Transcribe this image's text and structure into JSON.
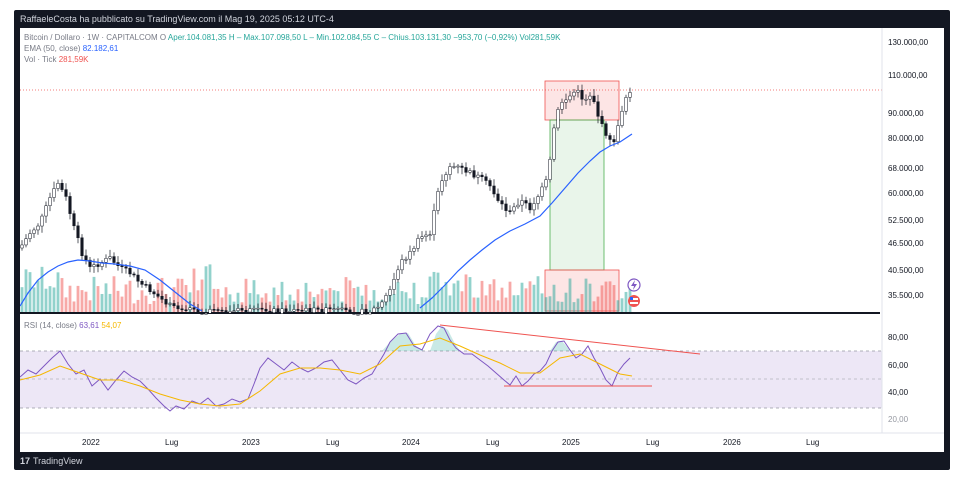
{
  "header": {
    "publisher_line": "RaffaeleCosta ha pubblicato su TradingView.com il Mag 19, 2025 05:12 UTC-4"
  },
  "legend": {
    "symbol": "Bitcoin / Dollaro · 1W · CAPITALCOM",
    "open_label": "O",
    "open_value": "Aper.104.081,35",
    "high_value": "H – Max.107.098,50",
    "low_value": "L – Min.102.084,55",
    "close_value": "C – Chius.103.131,30",
    "change_value": "−953,70 (−0,92%)",
    "vol_value": "Vol281,59K",
    "ema_label": "EMA (50, close)",
    "ema_value": "82.182,61",
    "volume_label": "Vol · Tick",
    "volume_value": "281,59K",
    "rsi_label": "RSI (14, close)",
    "rsi_value": "63,61",
    "rsi_ma_value": "54,07"
  },
  "price_axis": [
    "130.000,00",
    "110.000,00",
    "90.000,00",
    "80.000,00",
    "68.000,00",
    "60.000,00",
    "52.500,00",
    "46.500,00",
    "40.500,00",
    "35.500,00"
  ],
  "rsi_axis": [
    "80,00",
    "60,00",
    "40,00",
    "20,00"
  ],
  "time_axis": [
    "2022",
    "Lug",
    "2023",
    "Lug",
    "2024",
    "Lug",
    "2025",
    "Lug",
    "2026",
    "Lug"
  ],
  "footer": {
    "brand": "TradingView"
  },
  "colors": {
    "bull": "#26a69a",
    "bear": "#ef5350",
    "ema": "#2962ff",
    "rsi": "#7e57c2",
    "rsi_ma": "#f5b700",
    "background": "#131722"
  },
  "icons": [
    "lightning-icon",
    "flag-icon",
    "tradingview-logo-icon"
  ]
}
